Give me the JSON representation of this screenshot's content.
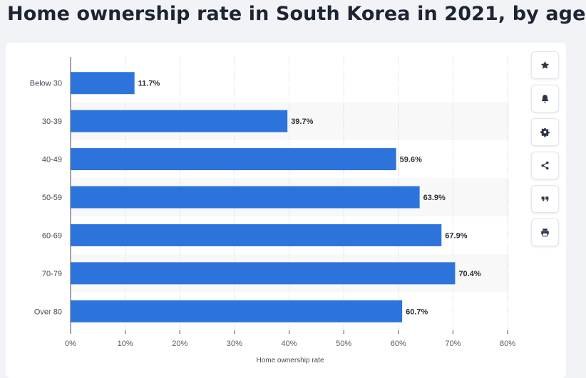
{
  "title": "Home ownership rate in South Korea in 2021, by age",
  "toolbar": [
    {
      "name": "star-icon",
      "label": "Favorite"
    },
    {
      "name": "bell-icon",
      "label": "Notifications"
    },
    {
      "name": "gear-icon",
      "label": "Settings"
    },
    {
      "name": "share-icon",
      "label": "Share"
    },
    {
      "name": "quote-icon",
      "label": "Cite"
    },
    {
      "name": "print-icon",
      "label": "Print"
    }
  ],
  "colors": {
    "bar": "#2d73dc",
    "band": "#f8f8f8",
    "grid": "#c9ccd1",
    "axis": "#4a4f57"
  },
  "chart_data": {
    "type": "bar",
    "orientation": "horizontal",
    "title": "Home ownership rate in South Korea in 2021, by age",
    "categories": [
      "Below 30",
      "30-39",
      "40-49",
      "50-59",
      "60-69",
      "70-79",
      "Over 80"
    ],
    "values": [
      11.7,
      39.7,
      59.6,
      63.9,
      67.9,
      70.4,
      60.7
    ],
    "value_labels": [
      "11.7%",
      "39.7%",
      "59.6%",
      "63.9%",
      "67.9%",
      "70.4%",
      "60.7%"
    ],
    "xlabel": "Home ownership rate",
    "ylabel": "",
    "xlim": [
      0,
      80
    ],
    "ticks": [
      0,
      10,
      20,
      30,
      40,
      50,
      60,
      70,
      80
    ],
    "tick_labels": [
      "0%",
      "10%",
      "20%",
      "30%",
      "40%",
      "50%",
      "60%",
      "70%",
      "80%"
    ],
    "grid": true
  }
}
